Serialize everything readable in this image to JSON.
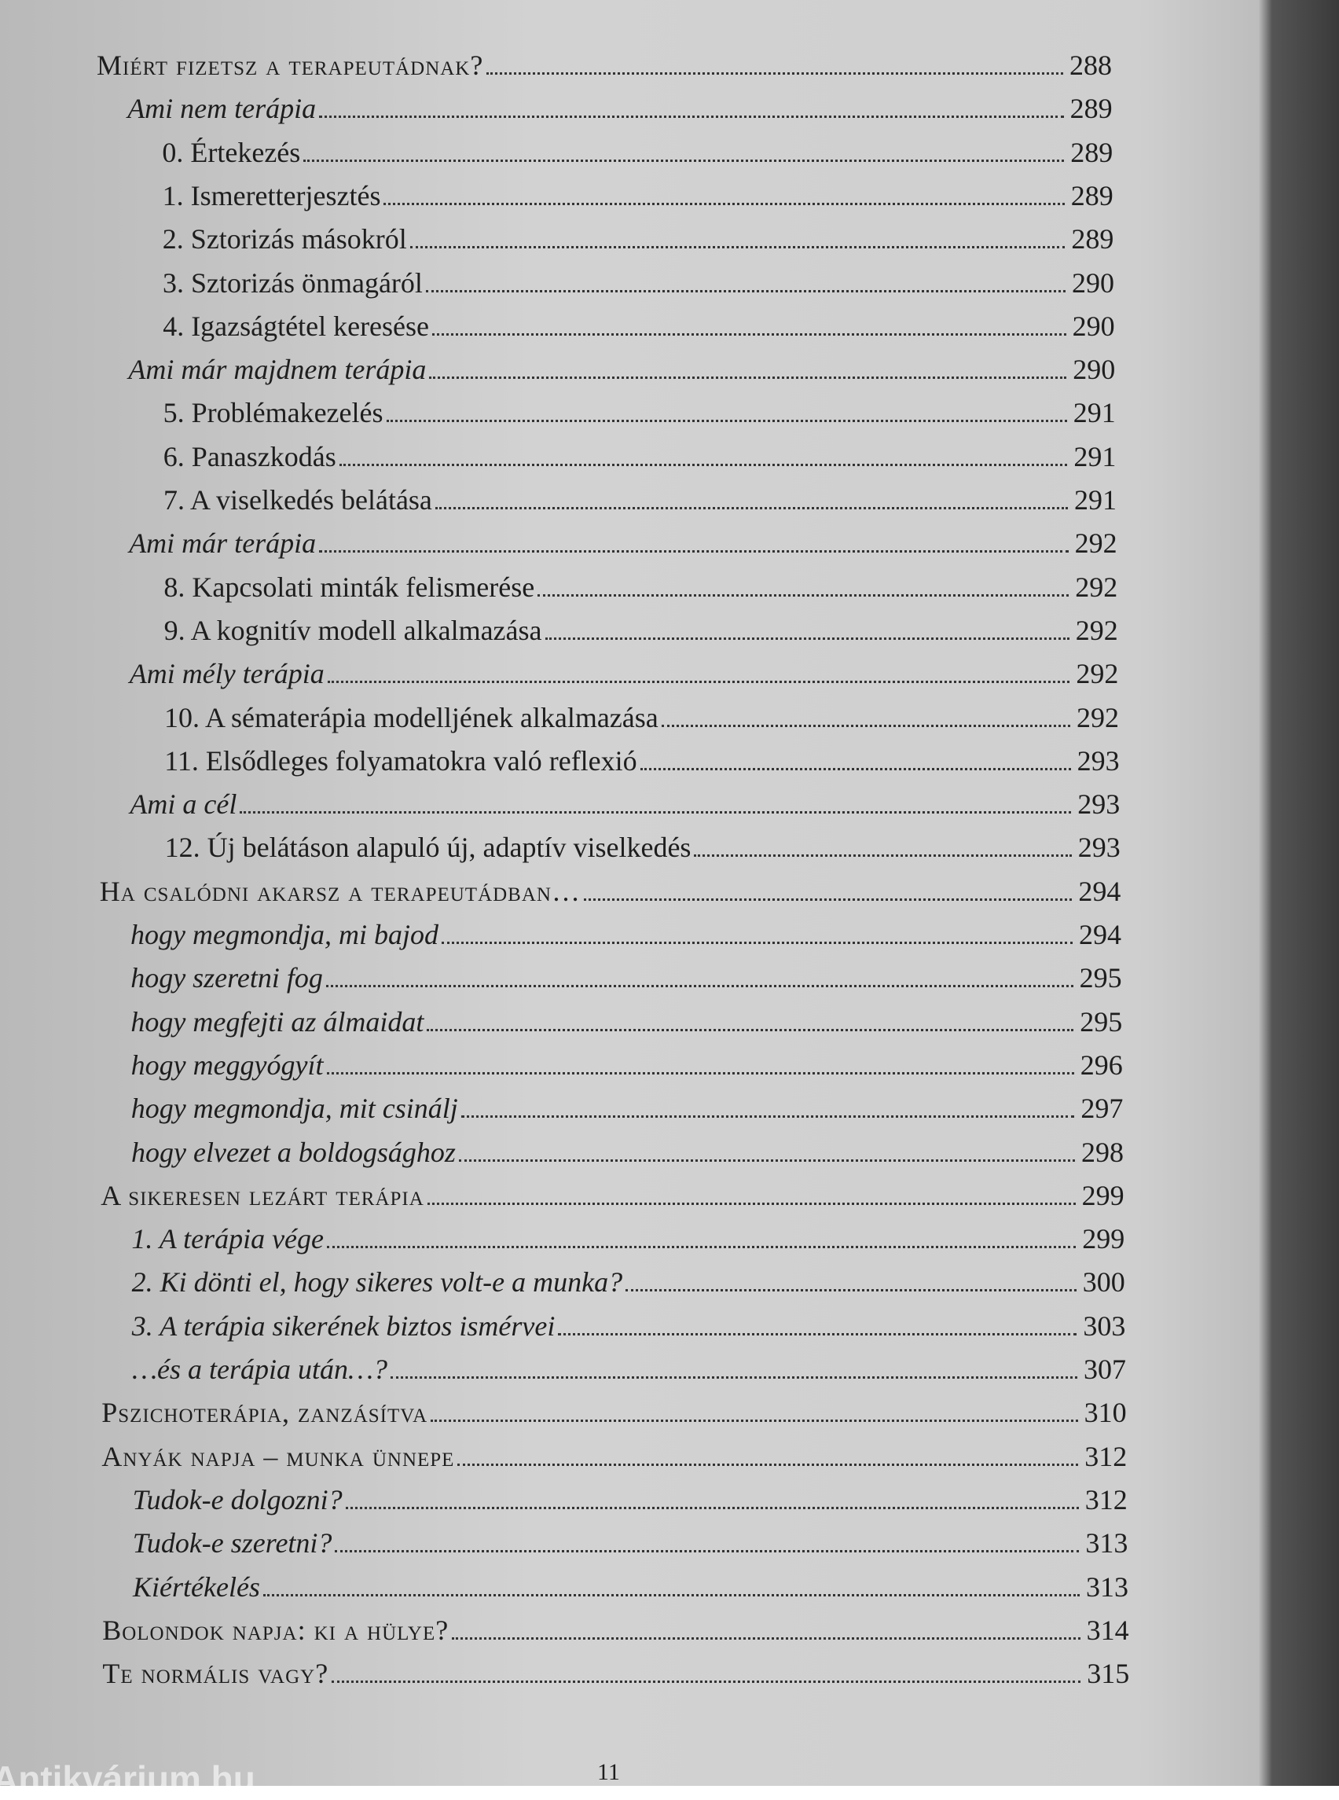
{
  "toc": {
    "entries": [
      {
        "title": "Miért fizetsz a terapeutádnak?",
        "page": "288",
        "style": "heading"
      },
      {
        "title": "Ami nem terápia",
        "page": "289",
        "style": "section"
      },
      {
        "title": "0. Értekezés",
        "page": "289",
        "style": "item"
      },
      {
        "title": "1. Ismeretterjesztés",
        "page": "289",
        "style": "item"
      },
      {
        "title": "2. Sztorizás másokról",
        "page": "289",
        "style": "item"
      },
      {
        "title": "3. Sztorizás önmagáról",
        "page": "290",
        "style": "item"
      },
      {
        "title": "4. Igazságtétel keresése",
        "page": "290",
        "style": "item"
      },
      {
        "title": "Ami már majdnem terápia",
        "page": "290",
        "style": "section"
      },
      {
        "title": "5. Problémakezelés",
        "page": "291",
        "style": "item"
      },
      {
        "title": "6. Panaszkodás",
        "page": "291",
        "style": "item"
      },
      {
        "title": "7. A viselkedés belátása",
        "page": "291",
        "style": "item"
      },
      {
        "title": "Ami már terápia",
        "page": "292",
        "style": "section"
      },
      {
        "title": "8. Kapcsolati minták felismerése",
        "page": "292",
        "style": "item"
      },
      {
        "title": "9. A kognitív modell alkalmazása",
        "page": "292",
        "style": "item"
      },
      {
        "title": "Ami mély terápia",
        "page": "292",
        "style": "section"
      },
      {
        "title": "10. A sématerápia modelljének alkalmazása",
        "page": "292",
        "style": "item"
      },
      {
        "title": "11. Elsődleges folyamatokra való reflexió",
        "page": "293",
        "style": "item"
      },
      {
        "title": "Ami a cél",
        "page": "293",
        "style": "section"
      },
      {
        "title": "12. Új belátáson alapuló új, adaptív viselkedés",
        "page": "293",
        "style": "item"
      },
      {
        "title": "Ha csalódni akarsz a terapeutádban…",
        "page": "294",
        "style": "heading"
      },
      {
        "title": "hogy megmondja, mi bajod",
        "page": "294",
        "style": "section"
      },
      {
        "title": "hogy szeretni fog",
        "page": "295",
        "style": "section"
      },
      {
        "title": "hogy megfejti az álmaidat",
        "page": "295",
        "style": "section"
      },
      {
        "title": "hogy meggyógyít",
        "page": "296",
        "style": "section"
      },
      {
        "title": "hogy megmondja, mit csinálj",
        "page": "297",
        "style": "section"
      },
      {
        "title": "hogy elvezet a boldogsághoz",
        "page": "298",
        "style": "section"
      },
      {
        "title": "A sikeresen lezárt terápia",
        "page": "299",
        "style": "heading"
      },
      {
        "title": "1. A terápia vége",
        "page": "299",
        "style": "section"
      },
      {
        "title": "2. Ki dönti el, hogy sikeres volt-e a munka?",
        "page": "300",
        "style": "section"
      },
      {
        "title": "3. A terápia sikerének biztos ismérvei",
        "page": "303",
        "style": "section"
      },
      {
        "title": "…és a terápia után…?",
        "page": "307",
        "style": "section"
      },
      {
        "title": "Pszichoterápia, zanzásítva",
        "page": "310",
        "style": "heading"
      },
      {
        "title": "Anyák napja – munka ünnepe",
        "page": "312",
        "style": "heading"
      },
      {
        "title": "Tudok-e dolgozni?",
        "page": "312",
        "style": "section"
      },
      {
        "title": "Tudok-e szeretni?",
        "page": "313",
        "style": "section"
      },
      {
        "title": "Kiértékelés",
        "page": "313",
        "style": "section"
      },
      {
        "title": "Bolondok napja: ki a hülye?",
        "page": "314",
        "style": "heading"
      },
      {
        "title": "Te normális vagy?",
        "page": "315",
        "style": "heading"
      }
    ]
  },
  "footer": {
    "page_number": "11",
    "watermark": "Antikvárium.hu"
  }
}
